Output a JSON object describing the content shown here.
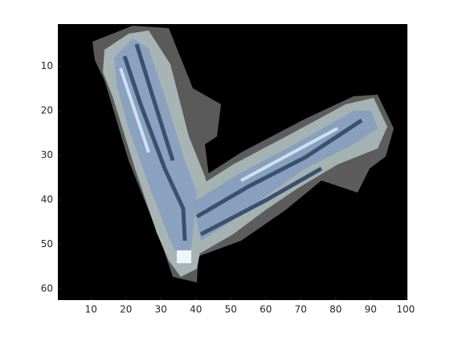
{
  "chart_data": {
    "type": "image",
    "xlim": [
      0.5,
      100.5
    ],
    "ylim": [
      0.5,
      62.5
    ],
    "ydir": "reverse",
    "xticks": [
      10,
      20,
      30,
      40,
      50,
      60,
      70,
      80,
      90,
      100
    ],
    "yticks": [
      10,
      20,
      30,
      40,
      50,
      60
    ]
  }
}
